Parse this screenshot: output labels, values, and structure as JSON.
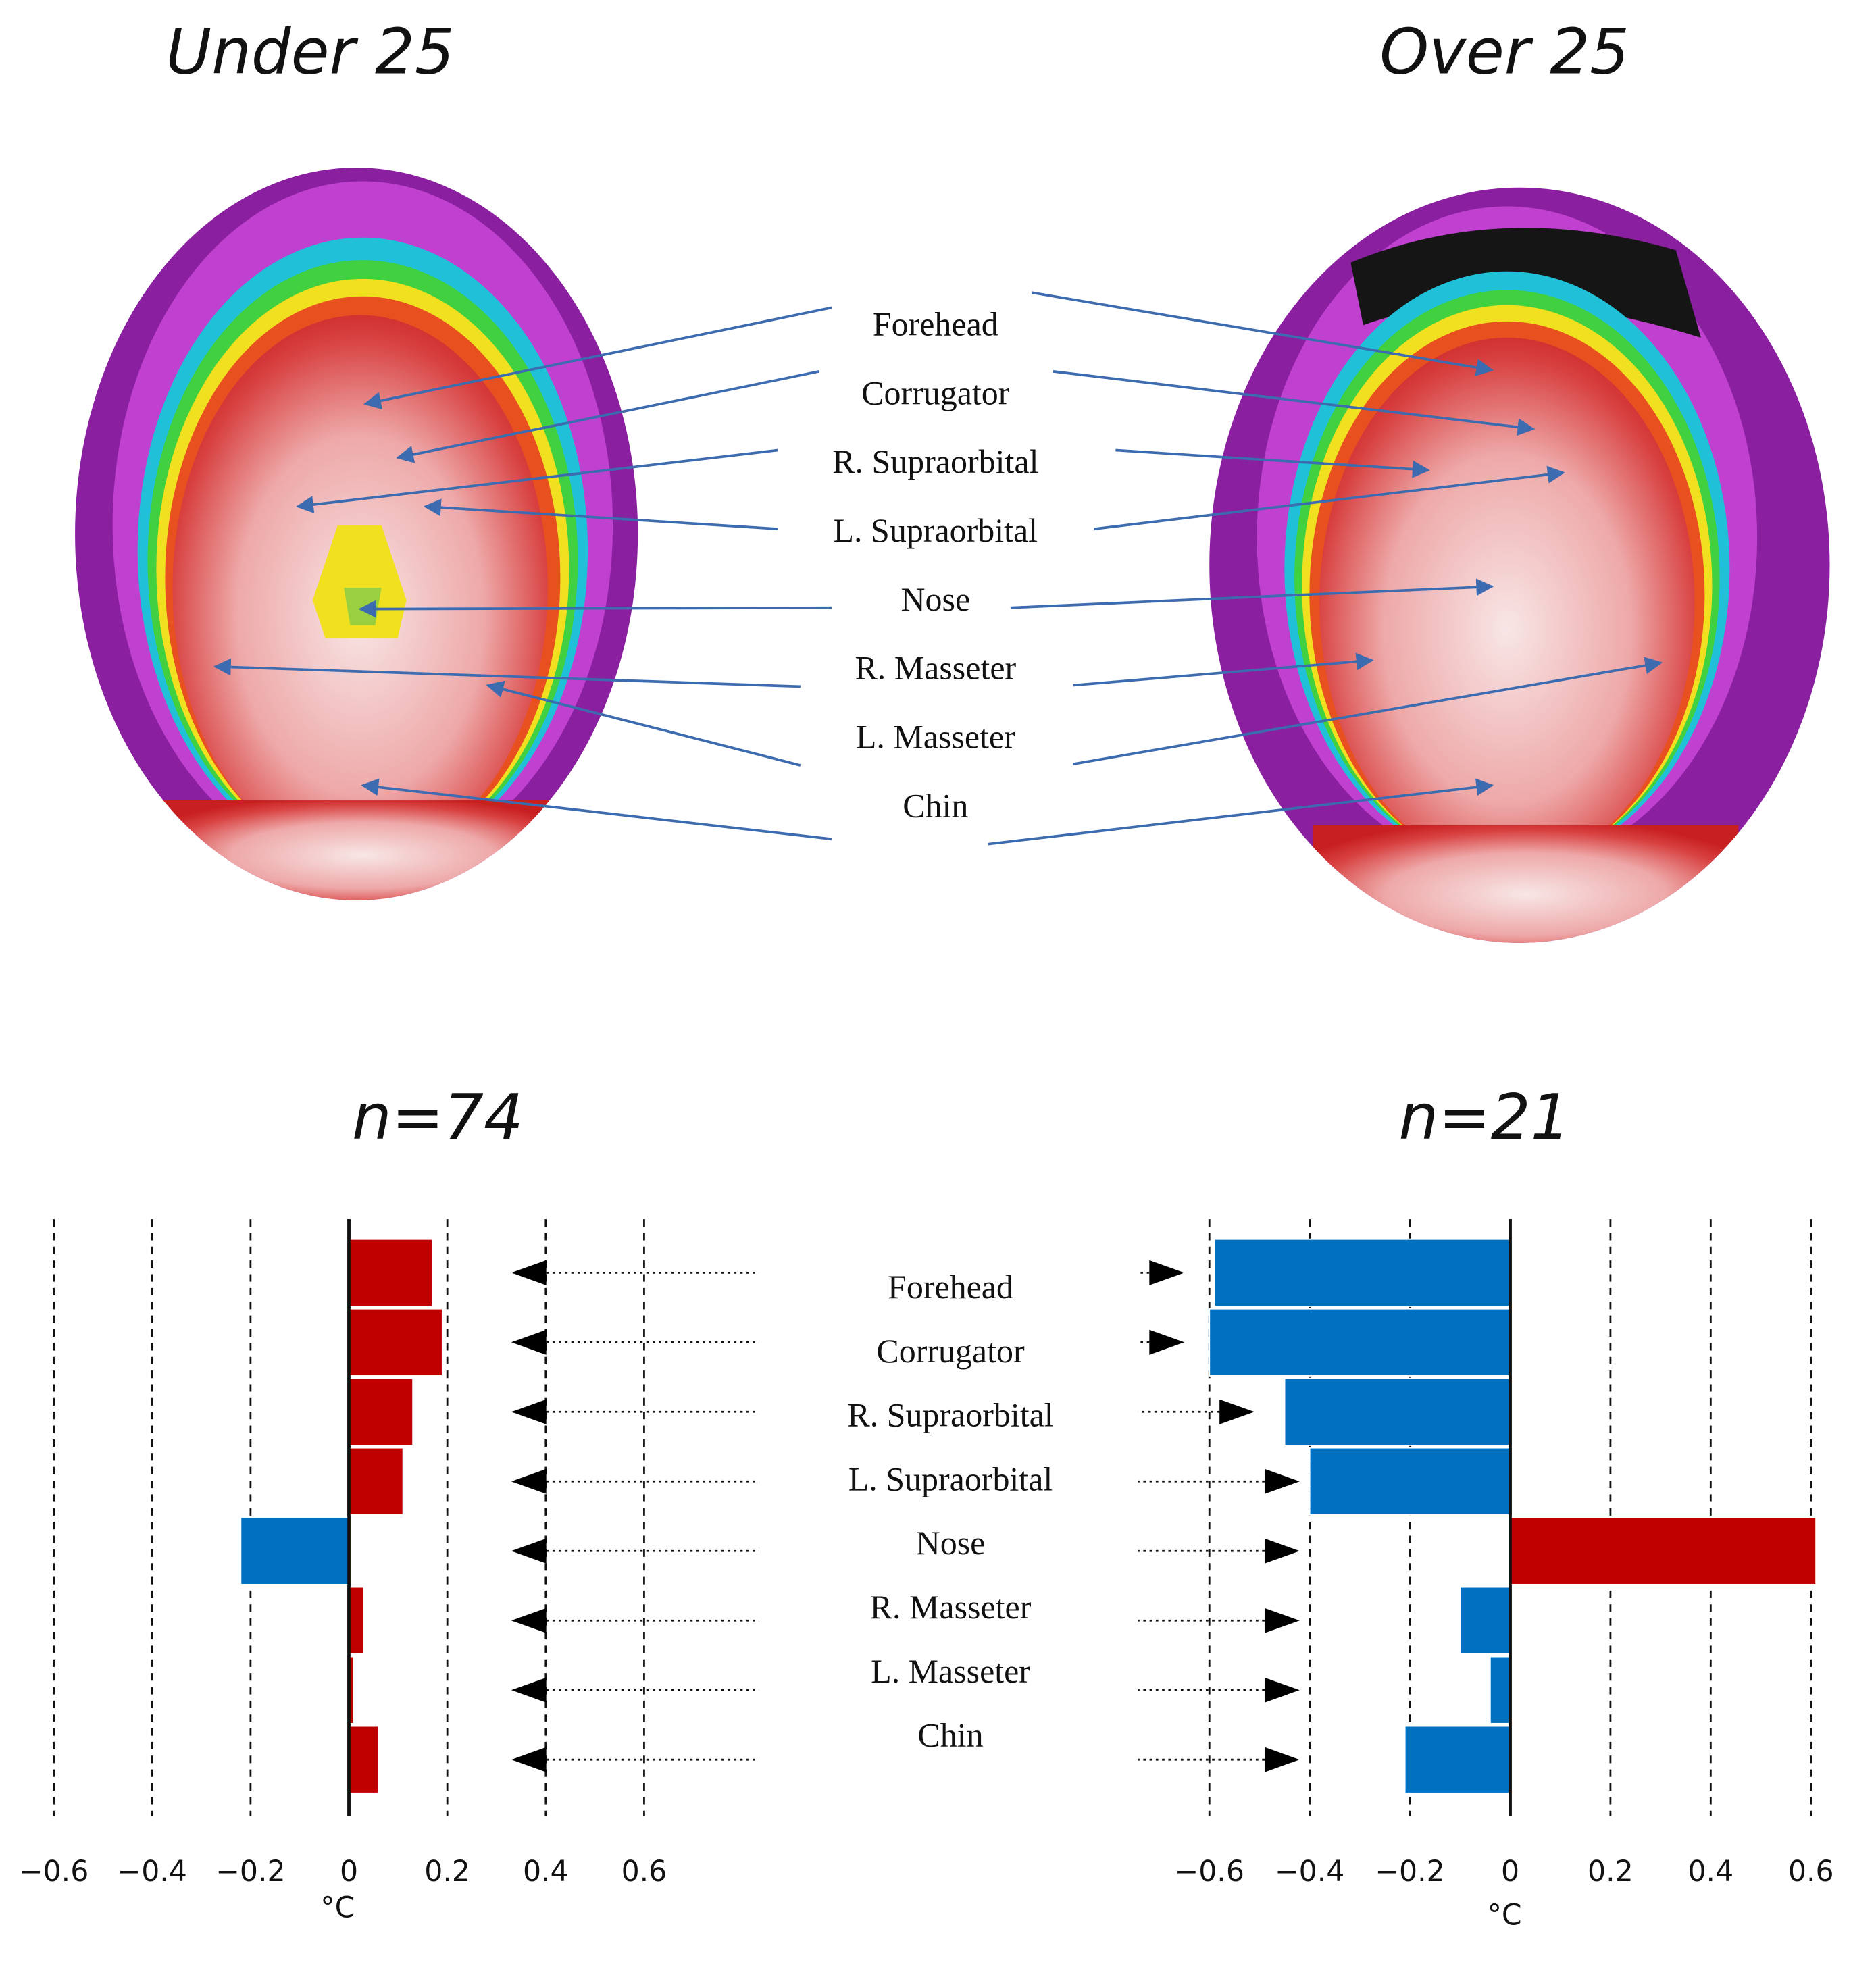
{
  "thermal_images": {
    "titles": [
      "Under 25",
      "Over 25"
    ],
    "regions": [
      "Forehead",
      "Corrugator",
      "R. Supraorbital",
      "L. Supraorbital",
      "Nose",
      "R. Masseter",
      "L. Masseter",
      "Chin"
    ]
  },
  "chart_data": {
    "type": "bar",
    "orientation": "horizontal",
    "categories": [
      "Forehead",
      "Corrugator",
      "R. Supraorbital",
      "L. Supraorbital",
      "Nose",
      "R. Masseter",
      "L. Masseter",
      "Chin"
    ],
    "positive_color": "#c00000",
    "negative_color": "#0070c0",
    "grid": true,
    "series": [
      {
        "name": "n=74",
        "xlabel": "°C",
        "values": [
          0.17,
          0.19,
          0.13,
          0.11,
          -0.22,
          0.03,
          0.01,
          0.06
        ],
        "xlim": [
          -0.6,
          0.6
        ],
        "xticks": [
          {
            "value": -0.6,
            "label": "−0.6"
          },
          {
            "value": -0.4,
            "label": "−0.4"
          },
          {
            "value": -0.2,
            "label": "−0.2"
          },
          0,
          0.2,
          0.4,
          0.6
        ],
        "arrow_direction": "left",
        "arrow_tips": [
          0.33,
          0.33,
          0.33,
          0.33,
          0.33,
          0.33,
          0.33,
          0.33
        ]
      },
      {
        "name": "n=21",
        "xlabel": "°C",
        "values": [
          -0.59,
          -0.6,
          -0.45,
          -0.4,
          0.61,
          -0.1,
          -0.04,
          -0.21
        ],
        "xlim": [
          -0.6,
          0.6
        ],
        "xticks": [
          {
            "value": -0.6,
            "label": "−0.6"
          },
          {
            "value": -0.4,
            "label": "−0.4"
          },
          {
            "value": -0.2,
            "label": "−0.2"
          },
          0,
          0.2,
          0.4,
          0.6
        ],
        "arrow_direction": "right",
        "arrow_tips": [
          -0.65,
          -0.65,
          -0.51,
          -0.42,
          -0.42,
          -0.42,
          -0.42,
          -0.42
        ]
      }
    ]
  }
}
